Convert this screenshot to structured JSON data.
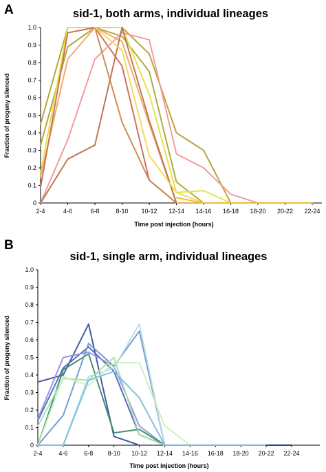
{
  "chart_data": [
    {
      "panel": "A",
      "type": "line",
      "title": "sid-1, both arms, individual lineages",
      "xlabel": "Time post injection (hours)",
      "ylabel": "Fraction of progeny silenced",
      "categories": [
        "2-4",
        "4-6",
        "6-8",
        "8-10",
        "10-12",
        "12-14",
        "14-16",
        "16-18",
        "18-20",
        "20-22",
        "22-24"
      ],
      "ylim": [
        0,
        1
      ],
      "yticks": [
        "0",
        "0.1",
        "0.2",
        "0.3",
        "0.4",
        "0.5",
        "0.6",
        "0.7",
        "0.8",
        "0.9",
        "1.0"
      ],
      "grid": false,
      "series": [
        {
          "color": "#b5a22a",
          "values": [
            0.45,
            1.0,
            1.0,
            1.0,
            0.85,
            0.4,
            0.3,
            0.0,
            null,
            null,
            null
          ]
        },
        {
          "color": "#a8a832",
          "values": [
            0.33,
            0.89,
            1.0,
            0.95,
            0.75,
            0.12,
            0.0,
            null,
            null,
            null,
            null
          ]
        },
        {
          "color": "#e5e040",
          "values": [
            0.17,
            1.0,
            1.0,
            1.0,
            0.62,
            0.06,
            0.07,
            0.0,
            null,
            null,
            null
          ]
        },
        {
          "color": "#f0a860",
          "values": [
            0.15,
            0.82,
            1.0,
            0.92,
            0.45,
            0.0,
            0.0,
            null,
            null,
            null,
            null
          ]
        },
        {
          "color": "#c86a55",
          "values": [
            0.09,
            0.97,
            1.0,
            0.78,
            0.13,
            0.0,
            null,
            null,
            null,
            null,
            null
          ]
        },
        {
          "color": "#ee9898",
          "values": [
            0.0,
            0.36,
            0.82,
            0.97,
            0.93,
            0.28,
            0.2,
            0.05,
            0.0,
            null,
            null
          ]
        },
        {
          "color": "#b8704a",
          "values": [
            0.0,
            0.25,
            0.33,
            1.0,
            0.47,
            0.0,
            null,
            null,
            null,
            null,
            null
          ]
        },
        {
          "color": "#c8884a",
          "values": [
            null,
            null,
            1.0,
            0.46,
            0.13,
            0.0,
            null,
            null,
            null,
            null,
            null
          ]
        },
        {
          "color": "#f5d855",
          "values": [
            null,
            null,
            1.0,
            0.87,
            0.27,
            0.06,
            0.0,
            null,
            null,
            null,
            null
          ]
        },
        {
          "color": "#ebc030",
          "values": [
            null,
            null,
            null,
            null,
            null,
            0.03,
            0.0,
            0.0,
            0.0,
            0.0,
            0.0
          ]
        }
      ]
    },
    {
      "panel": "B",
      "type": "line",
      "title": "sid-1, single arm, individual lineages",
      "xlabel": "Time post injection (hours)",
      "ylabel": "Fraction of progeny silenced",
      "categories": [
        "2-4",
        "4-6",
        "6-8",
        "8-10",
        "10-12",
        "12-14",
        "14-16",
        "16-18",
        "18-20",
        "20-22",
        "22-24"
      ],
      "ylim": [
        0,
        1
      ],
      "yticks": [
        "0",
        "0.1",
        "0.2",
        "0.3",
        "0.4",
        "0.5",
        "0.6",
        "0.7",
        "0.8",
        "0.9",
        "1.0"
      ],
      "grid": false,
      "series": [
        {
          "color": "#3a50a0",
          "values": [
            0.36,
            0.4,
            0.69,
            0.05,
            0.0,
            null,
            null,
            null,
            null,
            null,
            null
          ]
        },
        {
          "color": "#4a68b8",
          "values": [
            0.14,
            0.44,
            0.56,
            0.42,
            0.06,
            0.0,
            null,
            null,
            null,
            null,
            null
          ]
        },
        {
          "color": "#9a8ee0",
          "values": [
            0.15,
            0.5,
            0.53,
            0.45,
            0.11,
            0.0,
            null,
            null,
            null,
            null,
            null
          ]
        },
        {
          "color": "#3a8a6a",
          "values": [
            0.0,
            0.43,
            0.52,
            0.07,
            0.09,
            0.0,
            null,
            null,
            null,
            null,
            null
          ]
        },
        {
          "color": "#6a98cc",
          "values": [
            0.0,
            0.17,
            0.58,
            0.45,
            0.65,
            0.0,
            null,
            null,
            null,
            null,
            null
          ]
        },
        {
          "color": "#b5dbe8",
          "values": [
            0.0,
            0.0,
            0.39,
            0.44,
            0.69,
            0.0,
            null,
            null,
            null,
            null,
            null
          ]
        },
        {
          "color": "#a8e4a8",
          "values": [
            0.11,
            0.38,
            0.37,
            0.5,
            0.06,
            0.0,
            null,
            null,
            null,
            null,
            null
          ]
        },
        {
          "color": "#c8f0b8",
          "values": [
            0.0,
            0.39,
            0.34,
            0.47,
            0.47,
            0.11,
            0.0,
            null,
            null,
            null,
            null
          ]
        },
        {
          "color": "#78c0e0",
          "values": [
            0.0,
            0.0,
            0.37,
            0.42,
            0.27,
            0.0,
            0.0,
            0.0,
            0.0,
            0.0,
            0.0
          ]
        },
        {
          "color": "#2a3a90",
          "values": [
            null,
            null,
            null,
            null,
            null,
            null,
            null,
            null,
            null,
            0.0,
            0.0
          ]
        }
      ]
    }
  ]
}
